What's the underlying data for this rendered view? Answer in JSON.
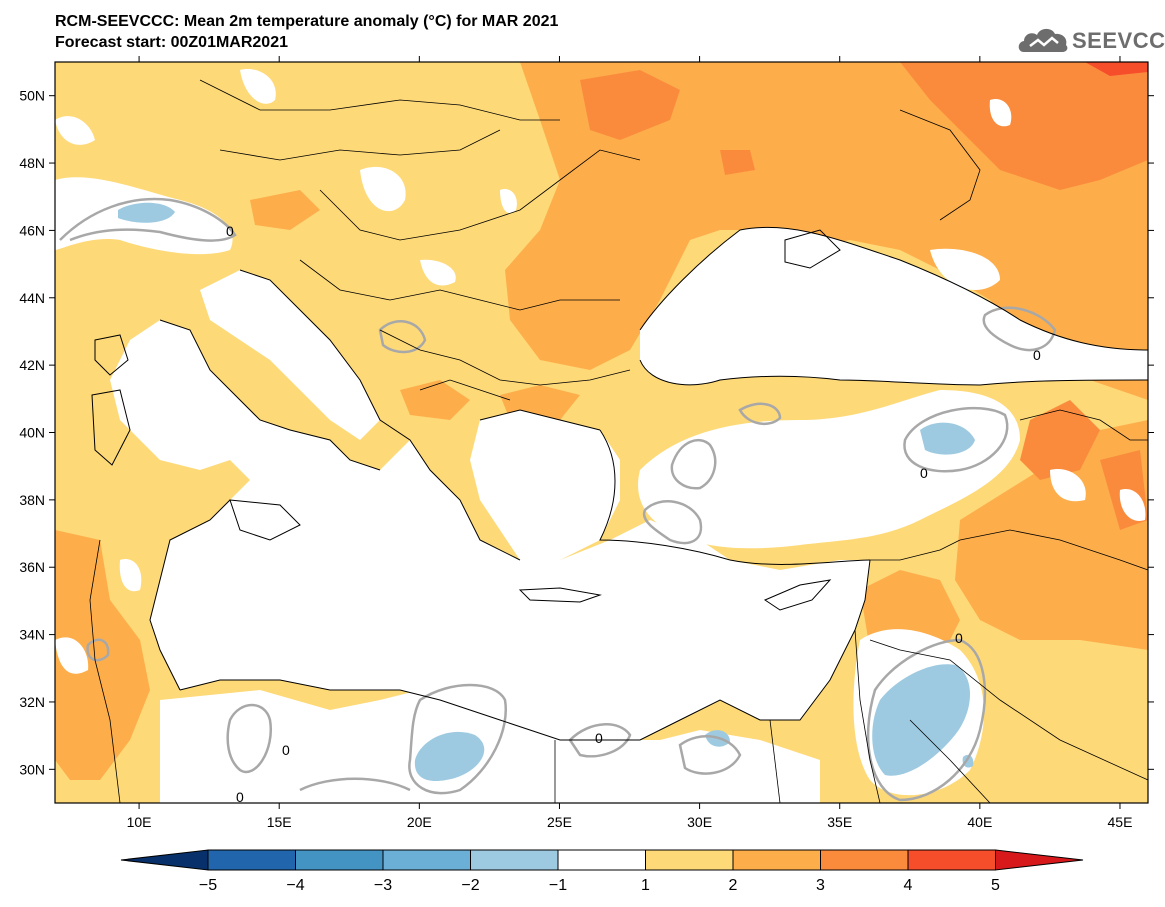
{
  "header": {
    "title": "RCM-SEEVCCC: Mean 2m temperature anomaly (°C) for MAR 2021",
    "subtitle": "Forecast start: 00Z01MAR2021"
  },
  "logo": {
    "text": "SEEVCCC",
    "icon": "cloud-icon",
    "color": "#6d6d6d"
  },
  "map": {
    "lon_range": [
      7,
      46
    ],
    "lat_range": [
      29,
      51
    ],
    "lat_ticks": [
      "30N",
      "32N",
      "34N",
      "36N",
      "38N",
      "40N",
      "42N",
      "44N",
      "46N",
      "48N",
      "50N"
    ],
    "lon_ticks": [
      "10E",
      "15E",
      "20E",
      "25E",
      "30E",
      "35E",
      "40E",
      "45E"
    ],
    "contour_label": "0",
    "colors": {
      "sea": "#ffffff",
      "band_1_2": "#fed978",
      "band_2_3": "#fdae4b",
      "band_3_4": "#fb8b3c",
      "band_4_5": "#f64d2b",
      "band_m2_m1": "#9ecae1",
      "zero_contour": "#a8a8a8"
    }
  },
  "colorbar": {
    "labels": [
      "−5",
      "−4",
      "−3",
      "−2",
      "−1",
      "1",
      "2",
      "3",
      "4",
      "5"
    ],
    "colors": [
      "#08306b",
      "#2166ac",
      "#4393c3",
      "#6baed6",
      "#9ecae1",
      "#ffffff",
      "#fed978",
      "#fdae4b",
      "#fb8b3c",
      "#f64d2b",
      "#d7191c"
    ]
  }
}
